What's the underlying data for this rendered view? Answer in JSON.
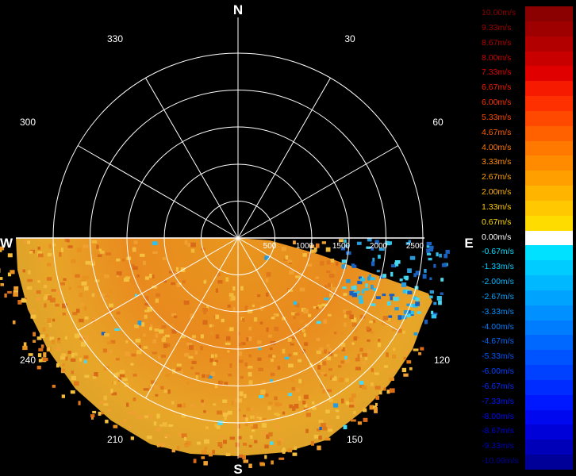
{
  "radar": {
    "compass": {
      "north": "N",
      "south": "S",
      "east": "E",
      "west": "W"
    },
    "azimuth_labels": [
      "330",
      "30",
      "300",
      "60",
      "240",
      "120",
      "210",
      "150"
    ],
    "range_labels": [
      "500",
      "1000",
      "1500",
      "2000",
      "2500"
    ]
  },
  "colorbar": {
    "entries": [
      {
        "label": "10.00m/s",
        "color": "#8b0000"
      },
      {
        "label": "9.33m/s",
        "color": "#9e0000"
      },
      {
        "label": "8.67m/s",
        "color": "#b20000"
      },
      {
        "label": "8.00m/s",
        "color": "#c80000"
      },
      {
        "label": "7.33m/s",
        "color": "#e00000"
      },
      {
        "label": "6.67m/s",
        "color": "#f51a00"
      },
      {
        "label": "6.00m/s",
        "color": "#ff3000"
      },
      {
        "label": "5.33m/s",
        "color": "#ff4800"
      },
      {
        "label": "4.67m/s",
        "color": "#ff6000"
      },
      {
        "label": "4.00m/s",
        "color": "#ff7800"
      },
      {
        "label": "3.33m/s",
        "color": "#ff8c00"
      },
      {
        "label": "2.67m/s",
        "color": "#ffa000"
      },
      {
        "label": "2.00m/s",
        "color": "#ffb400"
      },
      {
        "label": "1.33m/s",
        "color": "#ffc800"
      },
      {
        "label": "0.67m/s",
        "color": "#ffdc00"
      },
      {
        "label": "0.00m/s",
        "color": "#ffffff"
      },
      {
        "label": "-0.67m/s",
        "color": "#00e0ff"
      },
      {
        "label": "-1.33m/s",
        "color": "#00ccff"
      },
      {
        "label": "-2.00m/s",
        "color": "#00b8ff"
      },
      {
        "label": "-2.67m/s",
        "color": "#00a4ff"
      },
      {
        "label": "-3.33m/s",
        "color": "#0090ff"
      },
      {
        "label": "-4.00m/s",
        "color": "#007cff"
      },
      {
        "label": "-4.67m/s",
        "color": "#0068ff"
      },
      {
        "label": "-5.33m/s",
        "color": "#0054ff"
      },
      {
        "label": "-6.00m/s",
        "color": "#0040ff"
      },
      {
        "label": "-6.67m/s",
        "color": "#002cff"
      },
      {
        "label": "-7.33m/s",
        "color": "#0018ff"
      },
      {
        "label": "-8.00m/s",
        "color": "#0008f0"
      },
      {
        "label": "-8.67m/s",
        "color": "#0000d8"
      },
      {
        "label": "-9.33m/s",
        "color": "#0000b8"
      },
      {
        "label": "-10.00m/s",
        "color": "#000098"
      }
    ]
  }
}
